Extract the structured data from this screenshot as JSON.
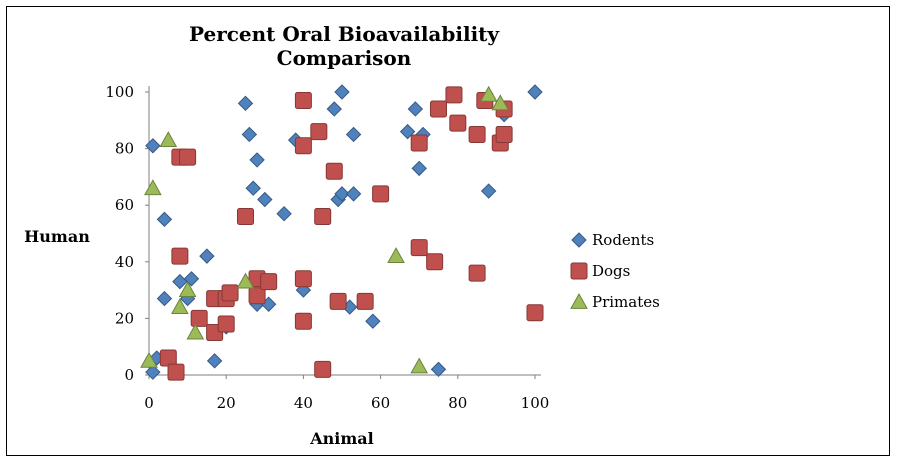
{
  "chart_data": {
    "type": "scatter",
    "title_line1": "Percent Oral Bioavailability",
    "title_line2": "Comparison",
    "xlabel": "Animal",
    "ylabel": "Human",
    "xlim": [
      0,
      100
    ],
    "ylim": [
      0,
      100
    ],
    "x_ticks": [
      "0",
      "20",
      "40",
      "60",
      "80",
      "100"
    ],
    "y_ticks": [
      "0",
      "20",
      "40",
      "60",
      "80",
      "100"
    ],
    "grid": false,
    "legend_position": "right",
    "series": [
      {
        "name": "Rodents",
        "marker": "diamond",
        "color": "#4f81bd",
        "points": [
          [
            1,
            81
          ],
          [
            1,
            1
          ],
          [
            2,
            6
          ],
          [
            4,
            27
          ],
          [
            4,
            55
          ],
          [
            8,
            33
          ],
          [
            10,
            27
          ],
          [
            11,
            34
          ],
          [
            15,
            42
          ],
          [
            17,
            5
          ],
          [
            20,
            17
          ],
          [
            25,
            96
          ],
          [
            26,
            85
          ],
          [
            27,
            66
          ],
          [
            28,
            76
          ],
          [
            28,
            25
          ],
          [
            30,
            62
          ],
          [
            31,
            25
          ],
          [
            35,
            57
          ],
          [
            38,
            83
          ],
          [
            40,
            30
          ],
          [
            48,
            94
          ],
          [
            49,
            62
          ],
          [
            50,
            64
          ],
          [
            50,
            100
          ],
          [
            52,
            24
          ],
          [
            53,
            64
          ],
          [
            53,
            85
          ],
          [
            58,
            19
          ],
          [
            67,
            86
          ],
          [
            69,
            94
          ],
          [
            70,
            73
          ],
          [
            71,
            85
          ],
          [
            75,
            2
          ],
          [
            88,
            65
          ],
          [
            92,
            92
          ],
          [
            100,
            100
          ]
        ]
      },
      {
        "name": "Dogs",
        "marker": "square",
        "color": "#c0504d",
        "points": [
          [
            5,
            6
          ],
          [
            7,
            1
          ],
          [
            8,
            77
          ],
          [
            8,
            42
          ],
          [
            10,
            77
          ],
          [
            13,
            20
          ],
          [
            17,
            15
          ],
          [
            17,
            27
          ],
          [
            20,
            27
          ],
          [
            20,
            18
          ],
          [
            21,
            29
          ],
          [
            25,
            56
          ],
          [
            28,
            34
          ],
          [
            28,
            28
          ],
          [
            31,
            33
          ],
          [
            40,
            97
          ],
          [
            40,
            81
          ],
          [
            40,
            34
          ],
          [
            40,
            19
          ],
          [
            44,
            86
          ],
          [
            45,
            56
          ],
          [
            45,
            2
          ],
          [
            48,
            72
          ],
          [
            49,
            26
          ],
          [
            56,
            26
          ],
          [
            60,
            64
          ],
          [
            70,
            82
          ],
          [
            70,
            45
          ],
          [
            74,
            40
          ],
          [
            75,
            94
          ],
          [
            79,
            99
          ],
          [
            80,
            89
          ],
          [
            85,
            85
          ],
          [
            85,
            36
          ],
          [
            87,
            97
          ],
          [
            91,
            82
          ],
          [
            92,
            85
          ],
          [
            92,
            94
          ],
          [
            100,
            22
          ]
        ]
      },
      {
        "name": "Primates",
        "marker": "triangle",
        "color": "#9bbb59",
        "points": [
          [
            0,
            5
          ],
          [
            1,
            66
          ],
          [
            5,
            83
          ],
          [
            8,
            24
          ],
          [
            10,
            30
          ],
          [
            12,
            15
          ],
          [
            25,
            33
          ],
          [
            64,
            42
          ],
          [
            70,
            3
          ],
          [
            88,
            99
          ],
          [
            91,
            96
          ]
        ]
      }
    ]
  }
}
